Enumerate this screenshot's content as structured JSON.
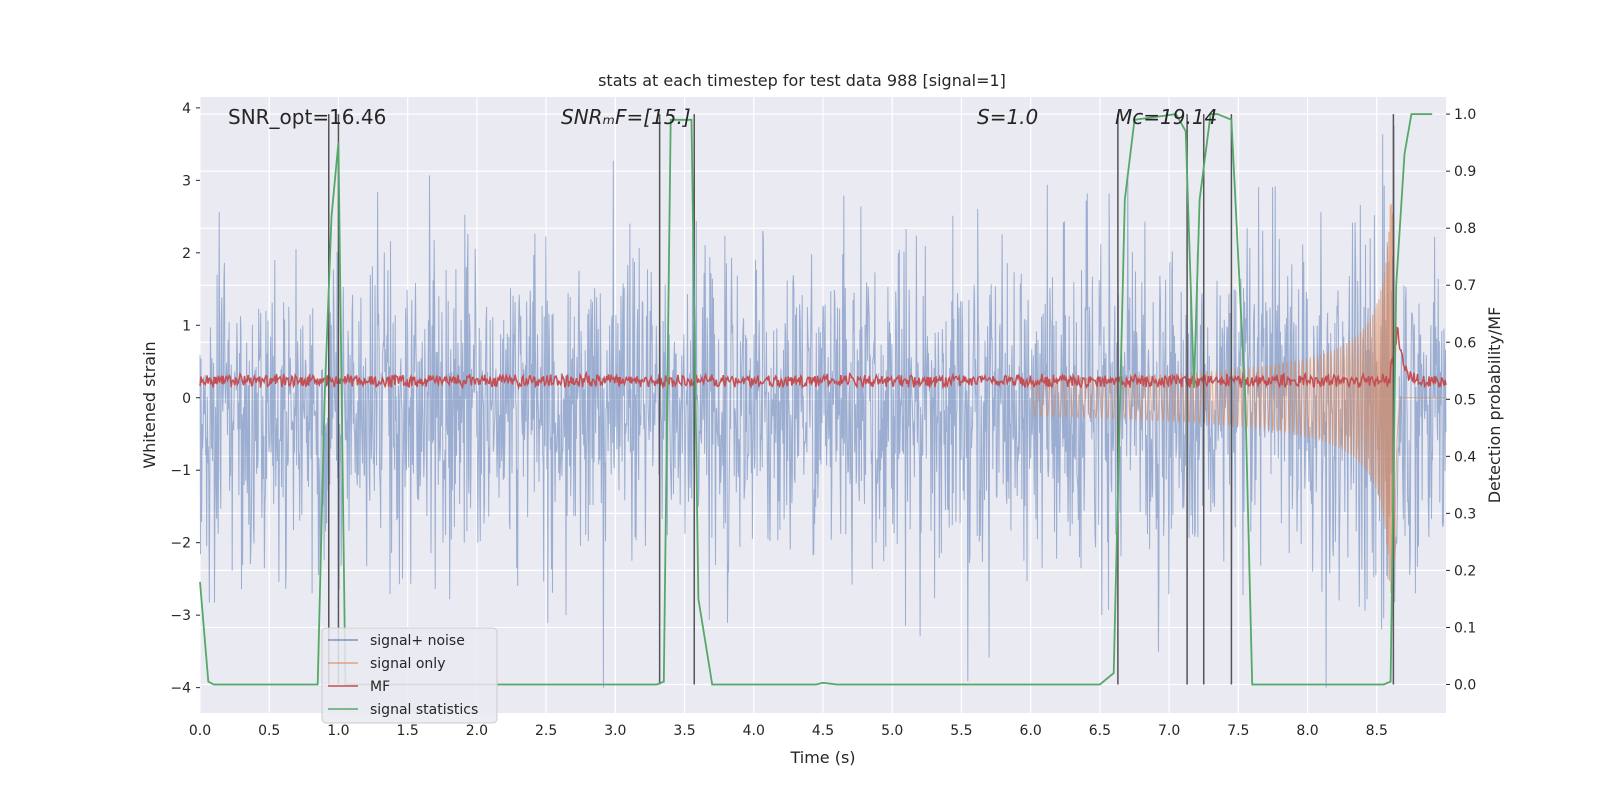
{
  "chart_data": {
    "type": "line",
    "title": "stats at each timestep for test data 988 [signal=1]",
    "xlabel": "Time (s)",
    "ylabel_left": "Whitened strain",
    "ylabel_right": "Detection probability/MF",
    "xlim": [
      0.0,
      9.0
    ],
    "ylim_left": [
      -4.35,
      4.15
    ],
    "ylim_right": [
      -0.05,
      1.03
    ],
    "xticks": [
      "0.0",
      "0.5",
      "1.0",
      "1.5",
      "2.0",
      "2.5",
      "3.0",
      "3.5",
      "4.0",
      "4.5",
      "5.0",
      "5.5",
      "6.0",
      "6.5",
      "7.0",
      "7.5",
      "8.0",
      "8.5"
    ],
    "yticks_left": [
      "−4",
      "−3",
      "−2",
      "−1",
      "0",
      "1",
      "2",
      "3",
      "4"
    ],
    "yticks_right": [
      "0.0",
      "0.1",
      "0.2",
      "0.3",
      "0.4",
      "0.5",
      "0.6",
      "0.7",
      "0.8",
      "0.9",
      "1.0"
    ],
    "grid": true,
    "legend_position": "lower-left",
    "annotations": [
      {
        "id": "snr-opt",
        "text": "SNR_opt=16.46",
        "italic": false
      },
      {
        "id": "snr-mf",
        "text": "SNRₘF=[15.]",
        "italic": true
      },
      {
        "id": "s-stat",
        "text": "S=1.0",
        "italic": true
      },
      {
        "id": "mc",
        "text": "Mᴄ=19.14",
        "italic": true
      }
    ],
    "detection_boundaries_s": [
      0.93,
      1.0,
      3.32,
      3.57,
      6.63,
      7.13,
      7.25,
      7.45,
      8.62
    ],
    "series": [
      {
        "name": "signal+ noise",
        "axis": "left",
        "color": "#4C72B0",
        "description_stats": {
          "band_1sigma": [
            -1.7,
            1.4
          ],
          "peak_range": [
            -4.0,
            3.8
          ]
        }
      },
      {
        "name": "signal only",
        "axis": "left",
        "color": "#DD8452",
        "chirp": {
          "start_time": 6.0,
          "merger_time": 8.63,
          "peak_amplitude": 2.7
        }
      },
      {
        "name": "MF",
        "axis": "right",
        "color": "#C44E52",
        "baseline": 0.53,
        "peak": {
          "time": 8.65,
          "value": 0.63
        }
      },
      {
        "name": "signal statistics",
        "axis": "right",
        "color": "#55A868",
        "x": [
          0.0,
          0.06,
          0.1,
          0.85,
          0.9,
          0.95,
          1.0,
          1.05,
          1.1,
          3.3,
          3.35,
          3.4,
          3.55,
          3.6,
          3.7,
          4.45,
          4.5,
          4.6,
          6.5,
          6.6,
          6.68,
          6.75,
          7.05,
          7.12,
          7.18,
          7.22,
          7.3,
          7.35,
          7.45,
          7.55,
          7.6,
          8.55,
          8.6,
          8.64,
          8.7,
          8.75,
          8.9
        ],
        "y": [
          0.18,
          0.005,
          0.0,
          0.0,
          0.5,
          0.82,
          0.95,
          0.0,
          0.0,
          0.0,
          0.005,
          0.99,
          0.99,
          0.15,
          0.0,
          0.0,
          0.003,
          0.0,
          0.0,
          0.02,
          0.85,
          0.99,
          1.0,
          0.97,
          0.52,
          0.85,
          1.0,
          1.0,
          0.99,
          0.5,
          0.0,
          0.0,
          0.005,
          0.7,
          0.93,
          1.0,
          1.0
        ]
      }
    ]
  }
}
